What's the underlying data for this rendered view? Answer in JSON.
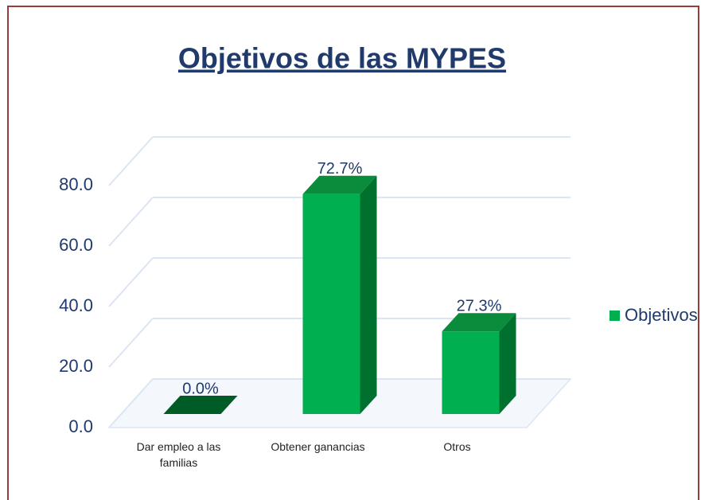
{
  "chart_data": {
    "type": "bar3d",
    "title": "Objetivos de las MYPES",
    "categories": [
      "Dar empleo a las familias",
      "Obtener ganancias",
      "Otros"
    ],
    "series": [
      {
        "name": "Objetivos",
        "color": "#00b050",
        "values": [
          0,
          72.7,
          27.3
        ],
        "value_labels": [
          "0.0%",
          "72.7%",
          "27.3%"
        ]
      }
    ],
    "ylim": [
      0,
      80
    ],
    "yticks": [
      {
        "value": 0,
        "label": "0.0"
      },
      {
        "value": 20,
        "label": "20.0"
      },
      {
        "value": 40,
        "label": "40.0"
      },
      {
        "value": 60,
        "label": "60.0"
      },
      {
        "value": 80,
        "label": "80.0"
      }
    ],
    "grid": true,
    "legend": "right"
  }
}
